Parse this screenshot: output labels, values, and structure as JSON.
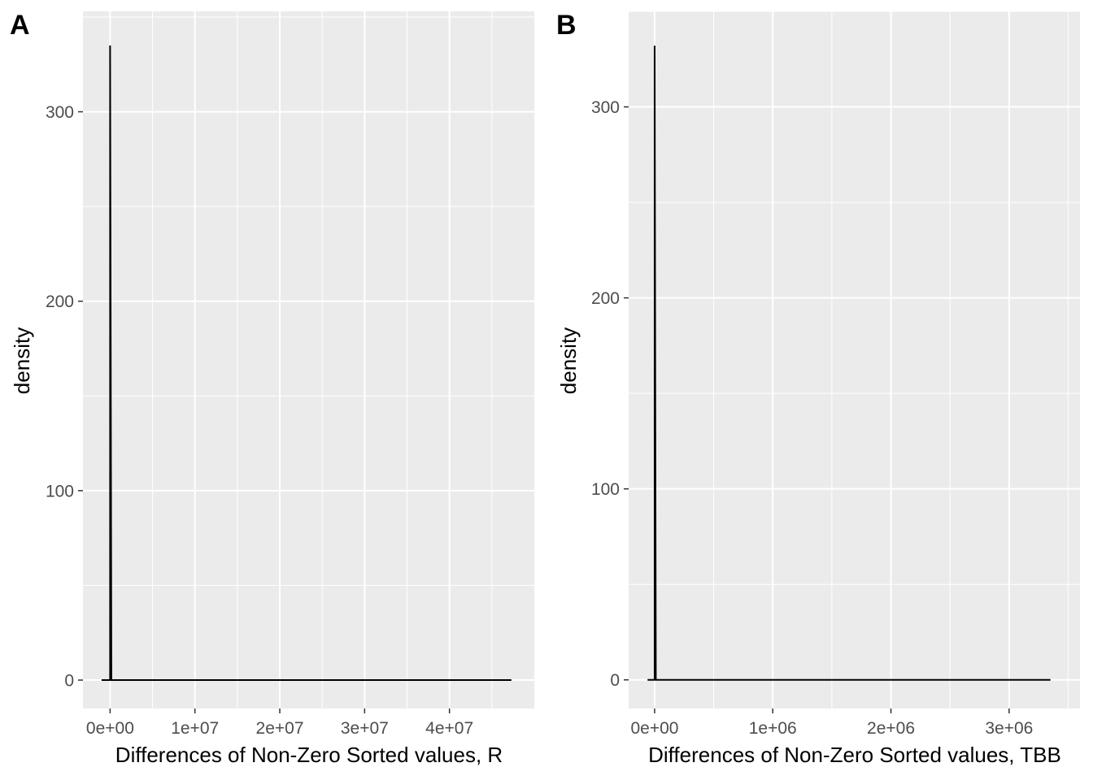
{
  "chart_data": [
    {
      "type": "line",
      "panel_label": "A",
      "title": "",
      "xlabel": "Differences of Non-Zero Sorted values, R",
      "ylabel": "density",
      "xlim": [
        -3200000,
        50000000
      ],
      "ylim": [
        -15,
        353
      ],
      "x_ticks": [
        0,
        10000000,
        20000000,
        30000000,
        40000000
      ],
      "x_tick_labels": [
        "0e+00",
        "1e+07",
        "2e+07",
        "3e+07",
        "4e+07"
      ],
      "y_ticks": [
        0,
        100,
        200,
        300
      ],
      "y_tick_labels": [
        "0",
        "100",
        "200",
        "300"
      ],
      "grid": true,
      "legend": "none",
      "series": [
        {
          "x": [
            -1000000,
            0,
            0,
            150000,
            47300000
          ],
          "y": [
            0,
            0,
            335,
            0,
            0
          ]
        }
      ],
      "line_color": "#000000",
      "panel_background": "#ebebeb",
      "grid_color": "#ffffff"
    },
    {
      "type": "line",
      "panel_label": "B",
      "title": "",
      "xlabel": "Differences of Non-Zero Sorted values, TBB",
      "ylabel": "density",
      "xlim": [
        -220000,
        3600000
      ],
      "ylim": [
        -15,
        350
      ],
      "x_ticks": [
        0,
        1000000,
        2000000,
        3000000
      ],
      "x_tick_labels": [
        "0e+00",
        "1e+06",
        "2e+06",
        "3e+06"
      ],
      "y_ticks": [
        0,
        100,
        200,
        300
      ],
      "y_tick_labels": [
        "0",
        "100",
        "200",
        "300"
      ],
      "grid": true,
      "legend": "none",
      "series": [
        {
          "x": [
            -60000,
            0,
            0,
            10000,
            3350000
          ],
          "y": [
            0,
            0,
            332,
            0,
            0
          ]
        }
      ],
      "line_color": "#000000",
      "panel_background": "#ebebeb",
      "grid_color": "#ffffff"
    }
  ]
}
